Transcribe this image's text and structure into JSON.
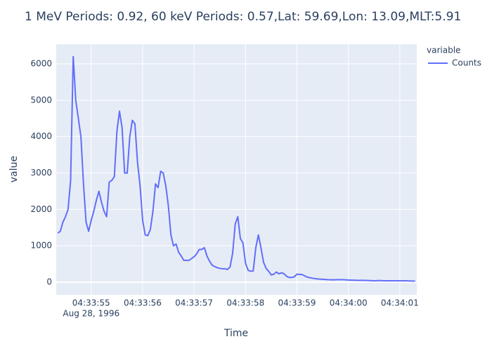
{
  "chart_data": {
    "type": "line",
    "title": "1 MeV Periods: 0.92, 60 keV Periods: 0.57,Lat: 59.69,Lon: 13.09,MLT:5.91",
    "x_label": "Time",
    "y_label": "value",
    "legend_title": "variable",
    "xtick_date": "Aug 28, 1996",
    "grid": true,
    "plot_background": "#e5ecf6",
    "x": [
      "1996-08-28T04:33:54.35",
      "1996-08-28T04:33:54.40",
      "1996-08-28T04:33:54.45",
      "1996-08-28T04:33:54.50",
      "1996-08-28T04:33:54.55",
      "1996-08-28T04:33:54.60",
      "1996-08-28T04:33:54.65",
      "1996-08-28T04:33:54.70",
      "1996-08-28T04:33:54.75",
      "1996-08-28T04:33:54.80",
      "1996-08-28T04:33:54.85",
      "1996-08-28T04:33:54.90",
      "1996-08-28T04:33:54.95",
      "1996-08-28T04:33:55.00",
      "1996-08-28T04:33:55.05",
      "1996-08-28T04:33:55.10",
      "1996-08-28T04:33:55.15",
      "1996-08-28T04:33:55.20",
      "1996-08-28T04:33:55.25",
      "1996-08-28T04:33:55.30",
      "1996-08-28T04:33:55.35",
      "1996-08-28T04:33:55.40",
      "1996-08-28T04:33:55.45",
      "1996-08-28T04:33:55.50",
      "1996-08-28T04:33:55.55",
      "1996-08-28T04:33:55.60",
      "1996-08-28T04:33:55.65",
      "1996-08-28T04:33:55.70",
      "1996-08-28T04:33:55.75",
      "1996-08-28T04:33:55.80",
      "1996-08-28T04:33:55.85",
      "1996-08-28T04:33:55.90",
      "1996-08-28T04:33:55.95",
      "1996-08-28T04:33:56.00",
      "1996-08-28T04:33:56.05",
      "1996-08-28T04:33:56.10",
      "1996-08-28T04:33:56.15",
      "1996-08-28T04:33:56.20",
      "1996-08-28T04:33:56.25",
      "1996-08-28T04:33:56.30",
      "1996-08-28T04:33:56.35",
      "1996-08-28T04:33:56.40",
      "1996-08-28T04:33:56.45",
      "1996-08-28T04:33:56.50",
      "1996-08-28T04:33:56.55",
      "1996-08-28T04:33:56.60",
      "1996-08-28T04:33:56.65",
      "1996-08-28T04:33:56.70",
      "1996-08-28T04:33:56.75",
      "1996-08-28T04:33:56.80",
      "1996-08-28T04:33:56.85",
      "1996-08-28T04:33:56.90",
      "1996-08-28T04:33:56.95",
      "1996-08-28T04:33:57.00",
      "1996-08-28T04:33:57.05",
      "1996-08-28T04:33:57.10",
      "1996-08-28T04:33:57.15",
      "1996-08-28T04:33:57.20",
      "1996-08-28T04:33:57.25",
      "1996-08-28T04:33:57.30",
      "1996-08-28T04:33:57.35",
      "1996-08-28T04:33:57.40",
      "1996-08-28T04:33:57.45",
      "1996-08-28T04:33:57.50",
      "1996-08-28T04:33:57.55",
      "1996-08-28T04:33:57.60",
      "1996-08-28T04:33:57.65",
      "1996-08-28T04:33:57.70",
      "1996-08-28T04:33:57.75",
      "1996-08-28T04:33:57.80",
      "1996-08-28T04:33:57.85",
      "1996-08-28T04:33:57.90",
      "1996-08-28T04:33:57.95",
      "1996-08-28T04:33:58.00",
      "1996-08-28T04:33:58.05",
      "1996-08-28T04:33:58.10",
      "1996-08-28T04:33:58.15",
      "1996-08-28T04:33:58.20",
      "1996-08-28T04:33:58.25",
      "1996-08-28T04:33:58.30",
      "1996-08-28T04:33:58.35",
      "1996-08-28T04:33:58.40",
      "1996-08-28T04:33:58.45",
      "1996-08-28T04:33:58.50",
      "1996-08-28T04:33:58.55",
      "1996-08-28T04:33:58.60",
      "1996-08-28T04:33:58.65",
      "1996-08-28T04:33:58.70",
      "1996-08-28T04:33:58.75",
      "1996-08-28T04:33:58.80",
      "1996-08-28T04:33:58.85",
      "1996-08-28T04:33:58.90",
      "1996-08-28T04:33:58.95",
      "1996-08-28T04:33:59.00",
      "1996-08-28T04:33:59.10",
      "1996-08-28T04:33:59.20",
      "1996-08-28T04:33:59.30",
      "1996-08-28T04:33:59.40",
      "1996-08-28T04:33:59.50",
      "1996-08-28T04:33:59.60",
      "1996-08-28T04:33:59.70",
      "1996-08-28T04:33:59.80",
      "1996-08-28T04:33:59.90",
      "1996-08-28T04:34:00.00",
      "1996-08-28T04:34:00.10",
      "1996-08-28T04:34:00.20",
      "1996-08-28T04:34:00.30",
      "1996-08-28T04:34:00.40",
      "1996-08-28T04:34:00.50",
      "1996-08-28T04:34:00.60",
      "1996-08-28T04:34:00.70",
      "1996-08-28T04:34:00.80",
      "1996-08-28T04:34:00.90",
      "1996-08-28T04:34:01.00",
      "1996-08-28T04:34:01.10",
      "1996-08-28T04:34:01.20",
      "1996-08-28T04:34:01.30"
    ],
    "series": [
      {
        "name": "Counts",
        "color": "#636efa",
        "values": [
          1350,
          1400,
          1650,
          1800,
          2000,
          2800,
          6200,
          5000,
          4500,
          4000,
          2700,
          1650,
          1400,
          1700,
          1950,
          2250,
          2500,
          2200,
          1950,
          1800,
          2750,
          2800,
          2900,
          4150,
          4700,
          4250,
          3000,
          3000,
          4000,
          4450,
          4350,
          3300,
          2650,
          1700,
          1300,
          1280,
          1450,
          1950,
          2700,
          2600,
          3050,
          3000,
          2650,
          2100,
          1300,
          1000,
          1050,
          820,
          720,
          600,
          600,
          600,
          650,
          700,
          780,
          900,
          900,
          950,
          720,
          580,
          470,
          430,
          400,
          380,
          370,
          370,
          350,
          420,
          800,
          1600,
          1800,
          1200,
          1080,
          520,
          330,
          300,
          310,
          950,
          1300,
          950,
          550,
          380,
          300,
          200,
          220,
          280,
          230,
          260,
          230,
          160,
          130,
          130,
          150,
          220,
          210,
          140,
          110,
          90,
          80,
          70,
          65,
          70,
          70,
          60,
          55,
          50,
          50,
          45,
          40,
          45,
          40,
          40,
          40,
          40,
          40,
          35,
          30
        ]
      }
    ],
    "xlim": [
      "1996-08-28T04:33:54.32",
      "1996-08-28T04:34:01.33"
    ],
    "xticks": [
      {
        "value": "1996-08-28T04:33:55",
        "label": "04:33:55"
      },
      {
        "value": "1996-08-28T04:33:56",
        "label": "04:33:56"
      },
      {
        "value": "1996-08-28T04:33:57",
        "label": "04:33:57"
      },
      {
        "value": "1996-08-28T04:33:58",
        "label": "04:33:58"
      },
      {
        "value": "1996-08-28T04:33:59",
        "label": "04:33:59"
      },
      {
        "value": "1996-08-28T04:34:00",
        "label": "04:34:00"
      },
      {
        "value": "1996-08-28T04:34:01",
        "label": "04:34:01"
      }
    ],
    "ylim": [
      -347,
      6540
    ],
    "yticks": [
      0,
      1000,
      2000,
      3000,
      4000,
      5000,
      6000
    ]
  }
}
